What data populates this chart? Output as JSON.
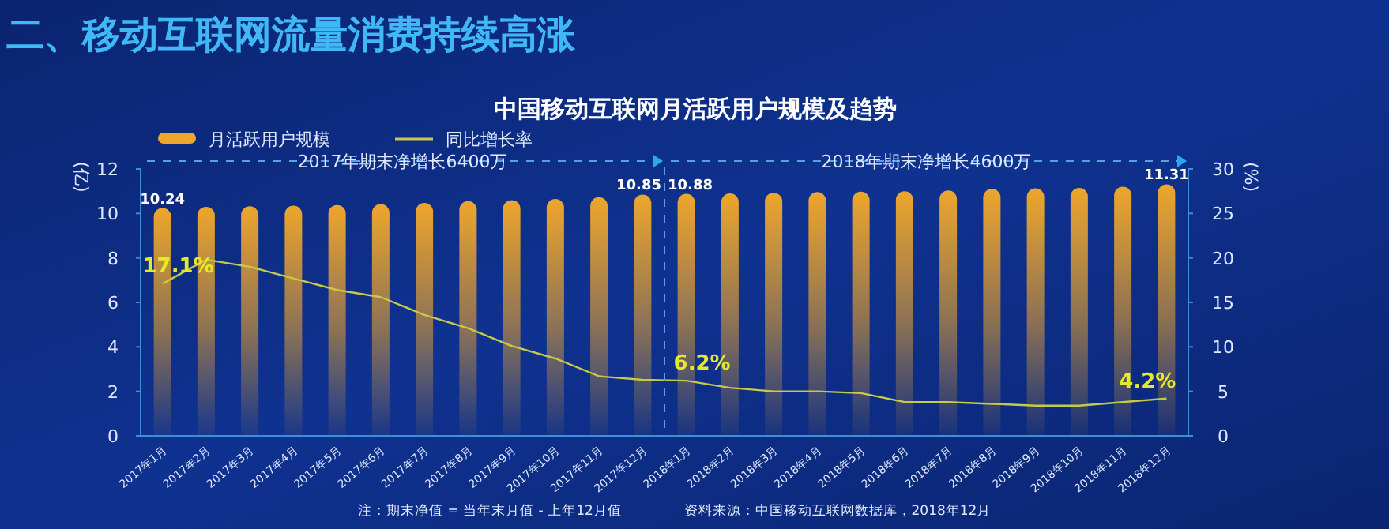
{
  "chart_data": {
    "type": "bar",
    "title": "二、移动互联网流量消费持续高涨",
    "subtitle": "中国移动互联网月活跃用户规模及趋势",
    "ylabel": "(亿)",
    "y2label": "(%)",
    "categories": [
      "2017年1月",
      "2017年2月",
      "2017年3月",
      "2017年4月",
      "2017年5月",
      "2017年6月",
      "2017年7月",
      "2017年8月",
      "2017年9月",
      "2017年10月",
      "2017年11月",
      "2017年12月",
      "2018年1月",
      "2018年2月",
      "2018年3月",
      "2018年4月",
      "2018年5月",
      "2018年6月",
      "2018年7月",
      "2018年8月",
      "2018年9月",
      "2018年10月",
      "2018年11月",
      "2018年12月"
    ],
    "series": [
      {
        "name": "月活跃用户规模",
        "color": "#eea62c",
        "values": [
          10.24,
          10.3,
          10.32,
          10.35,
          10.38,
          10.42,
          10.47,
          10.55,
          10.6,
          10.65,
          10.73,
          10.85,
          10.88,
          10.9,
          10.93,
          10.96,
          10.98,
          11.0,
          11.03,
          11.1,
          11.13,
          11.15,
          11.2,
          11.31
        ],
        "value_labels": [
          "10.24",
          null,
          null,
          null,
          null,
          null,
          null,
          null,
          null,
          null,
          null,
          "10.85",
          "10.88",
          null,
          null,
          null,
          null,
          null,
          null,
          null,
          null,
          null,
          null,
          "11.31"
        ]
      },
      {
        "name": "同比增长率",
        "type": "line",
        "axis": "y2",
        "color": "#c8c84a",
        "values": [
          17.1,
          19.8,
          19.0,
          17.7,
          16.4,
          15.6,
          13.6,
          12.1,
          10.1,
          8.7,
          6.7,
          6.3,
          6.2,
          5.4,
          5.0,
          5.0,
          4.8,
          3.8,
          3.8,
          3.6,
          3.4,
          3.4,
          3.8,
          4.2
        ],
        "value_labels": [
          "17.1%",
          null,
          null,
          null,
          null,
          null,
          null,
          null,
          null,
          null,
          null,
          null,
          "6.2%",
          null,
          null,
          null,
          null,
          null,
          null,
          null,
          null,
          null,
          null,
          "4.2%"
        ]
      }
    ],
    "ylim": [
      0,
      12
    ],
    "yticks": [
      0,
      2,
      4,
      6,
      8,
      10,
      12
    ],
    "y2lim": [
      0,
      30
    ],
    "y2ticks": [
      0,
      5,
      10,
      15,
      20,
      25,
      30
    ],
    "legend": "top left",
    "marker": "none",
    "line_style": "solid",
    "annotations": [
      "2017年期末净增长6400万",
      "2018年期末净增长4600万",
      "注：期末净值 = 当年末月值 - 上年12月值",
      "资料来源：中国移动互联网数据库，2018年12月"
    ]
  }
}
